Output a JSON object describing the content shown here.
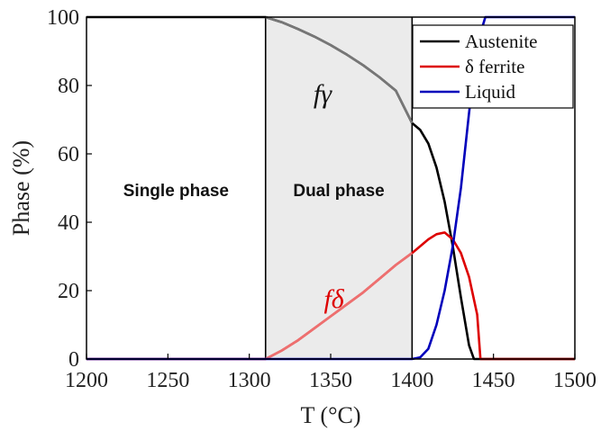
{
  "chart_data": {
    "type": "line",
    "title": "",
    "xlabel": "T (°C)",
    "ylabel": "Phase (%)",
    "xlim": [
      1200,
      1500
    ],
    "ylim": [
      0,
      100
    ],
    "xticks": [
      "1200",
      "1250",
      "1300",
      "1350",
      "1400",
      "1450",
      "1500"
    ],
    "yticks": [
      "0",
      "20",
      "40",
      "60",
      "80",
      "100"
    ],
    "grid": false,
    "legend_position": "top-right",
    "series": [
      {
        "name": "Austenite",
        "color": "#000000",
        "x": [
          1200,
          1310,
          1320,
          1330,
          1340,
          1350,
          1360,
          1370,
          1380,
          1390,
          1400,
          1405,
          1410,
          1415,
          1420,
          1425,
          1430,
          1435,
          1438,
          1440,
          1500
        ],
        "y": [
          100,
          100,
          98.5,
          96.5,
          94.3,
          91.8,
          89,
          85.9,
          82.4,
          78.5,
          69,
          67,
          63,
          56,
          46,
          33,
          18,
          4,
          0,
          0,
          0
        ]
      },
      {
        "name": "δ ferrite",
        "color": "#dd0000",
        "x": [
          1200,
          1310,
          1320,
          1330,
          1340,
          1350,
          1360,
          1370,
          1380,
          1390,
          1400,
          1405,
          1410,
          1415,
          1420,
          1425,
          1430,
          1435,
          1440,
          1442,
          1500
        ],
        "y": [
          0,
          0,
          2.5,
          5.5,
          9,
          12.5,
          16,
          19.5,
          23.5,
          27.5,
          31,
          33,
          35,
          36.5,
          37,
          35,
          31,
          24,
          13,
          0,
          0
        ]
      },
      {
        "name": "Liquid",
        "color": "#0000bb",
        "x": [
          1200,
          1400,
          1405,
          1410,
          1415,
          1420,
          1425,
          1430,
          1435,
          1440,
          1445,
          1450,
          1500
        ],
        "y": [
          0,
          0,
          0.5,
          3,
          10,
          20,
          33,
          50,
          72,
          92,
          100,
          100,
          100
        ]
      }
    ],
    "regions": [
      {
        "label": "Single phase",
        "x_start": 1200,
        "x_end": 1310,
        "label_x": 1255,
        "label_y": 49
      },
      {
        "label": "Dual phase",
        "x_start": 1310,
        "x_end": 1400,
        "label_x": 1355,
        "label_y": 49,
        "fill": "#ebebeb"
      }
    ],
    "annotations": [
      {
        "text": "fγ",
        "x": 1345,
        "y": 75,
        "color": "#111111"
      },
      {
        "text": "fδ",
        "x": 1352,
        "y": 15,
        "color": "#dd0000"
      }
    ]
  }
}
